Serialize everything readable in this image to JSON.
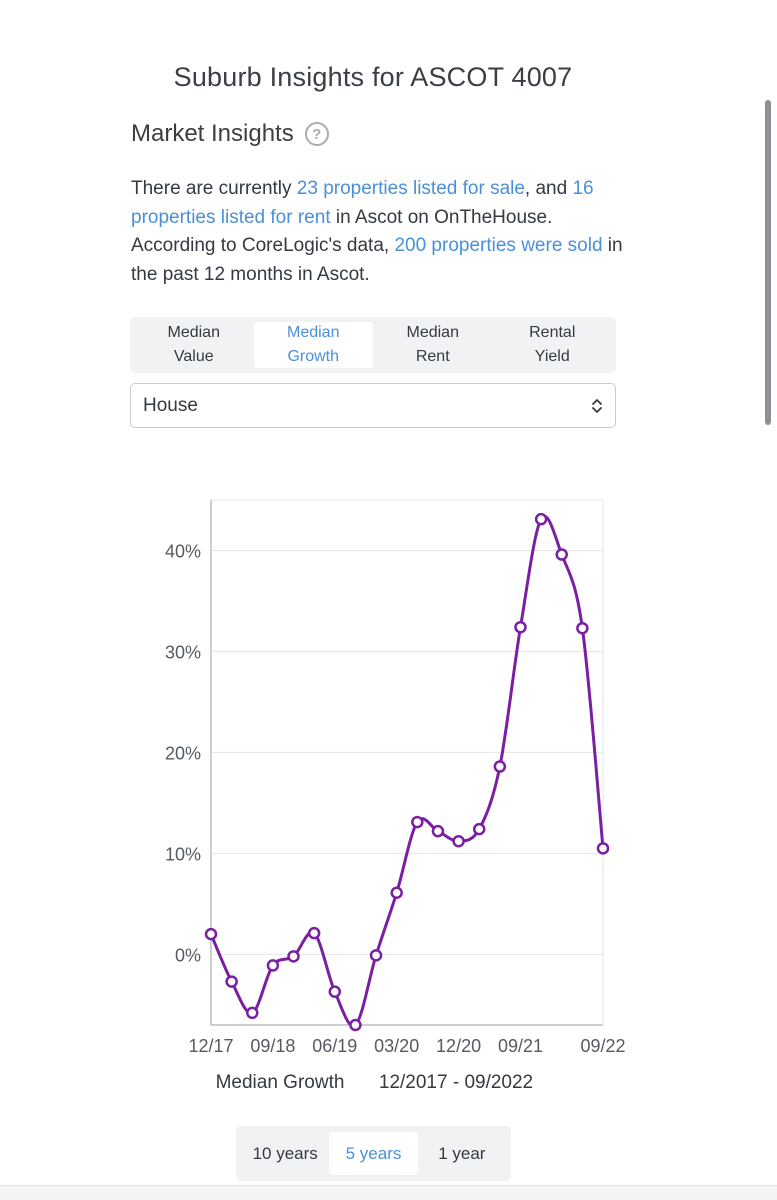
{
  "page": {
    "title": "Suburb Insights for ASCOT 4007",
    "section_title": "Market Insights",
    "help_icon": "question-circle-icon"
  },
  "intro": {
    "t1": "There are currently ",
    "link1": "23 properties listed for sale",
    "t2": ", and ",
    "link2": "16 properties listed for rent",
    "t3": " in Ascot on OnTheHouse. According to CoreLogic's data, ",
    "link3": "200 properties were sold",
    "t4": " in the past 12 months in Ascot."
  },
  "tabs": [
    {
      "line1": "Median",
      "line2": "Value",
      "active": false
    },
    {
      "line1": "Median",
      "line2": "Growth",
      "active": true
    },
    {
      "line1": "Median",
      "line2": "Rent",
      "active": false
    },
    {
      "line1": "Rental",
      "line2": "Yield",
      "active": false
    }
  ],
  "select": {
    "value": "House",
    "icon": "updown-chevron-icon"
  },
  "chart_data": {
    "type": "line",
    "title": "",
    "xlabel": "Median Growth",
    "xlabel_range": "12/2017 - 09/2022",
    "ylabel": "",
    "ylim": [
      -7,
      45
    ],
    "yticks": [
      0,
      10,
      20,
      30,
      40
    ],
    "ytick_labels": [
      "0%",
      "10%",
      "20%",
      "30%",
      "40%"
    ],
    "x_tick_labels": [
      "12/17",
      "09/18",
      "06/19",
      "03/20",
      "12/20",
      "09/21",
      "09/22"
    ],
    "x": [
      "12/17",
      "03/18",
      "06/18",
      "09/18",
      "12/18",
      "03/19",
      "06/19",
      "09/19",
      "12/19",
      "03/20",
      "06/20",
      "09/20",
      "12/20",
      "03/21",
      "06/21",
      "09/21",
      "12/21",
      "03/22",
      "06/22",
      "09/22"
    ],
    "series": [
      {
        "values": [
          2,
          -2.7,
          -5.8,
          -1.1,
          -0.2,
          2.1,
          -3.7,
          -7,
          -0.1,
          6.1,
          13.1,
          12.2,
          11.2,
          12.4,
          18.6,
          32.4,
          43.1,
          39.6,
          32.3,
          10.5
        ],
        "color": "#7b1fa2"
      }
    ],
    "grid": true,
    "legend": "none"
  },
  "periods": [
    {
      "label": "10 years",
      "active": false
    },
    {
      "label": "5 years",
      "active": true
    },
    {
      "label": "1 year",
      "active": false
    }
  ]
}
